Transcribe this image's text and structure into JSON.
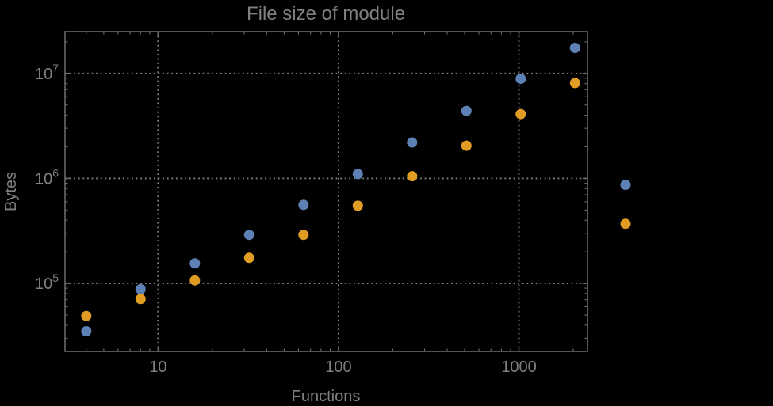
{
  "chart_data": {
    "type": "scatter",
    "title": "File size of module",
    "xlabel": "Functions",
    "ylabel": "Bytes",
    "xscale": "log",
    "yscale": "log",
    "xlim": [
      3.05,
      2400
    ],
    "ylim": [
      22500,
      25000000
    ],
    "grid": true,
    "grid_style": "dotted",
    "legend": "none",
    "background_color": "#000000",
    "frame_color": "#6f6f6f",
    "grid_color": "#828282",
    "text_color": "#808080",
    "x_ticks": {
      "values": [
        10,
        100,
        1000
      ],
      "labels": [
        "10",
        "100",
        "1000"
      ]
    },
    "y_ticks": {
      "values": [
        100000,
        1000000,
        10000000
      ],
      "labels": [
        {
          "base": "10",
          "exp": "5"
        },
        {
          "base": "10",
          "exp": "6"
        },
        {
          "base": "10",
          "exp": "7"
        }
      ]
    },
    "series": [
      {
        "id": "series-1",
        "color": "#5E81B5",
        "marker": "circle",
        "points": [
          [
            4,
            35000
          ],
          [
            8,
            88000
          ],
          [
            16,
            155000
          ],
          [
            32,
            290000
          ],
          [
            64,
            560000
          ],
          [
            128,
            1100000
          ],
          [
            256,
            2200000
          ],
          [
            512,
            4400000
          ],
          [
            1024,
            8900000
          ],
          [
            2048,
            17500000
          ],
          [
            3900,
            870000
          ]
        ]
      },
      {
        "id": "series-2",
        "color": "#E19C24",
        "marker": "circle",
        "points": [
          [
            4,
            49000
          ],
          [
            8,
            71000
          ],
          [
            16,
            107000
          ],
          [
            32,
            175000
          ],
          [
            64,
            290000
          ],
          [
            128,
            550000
          ],
          [
            256,
            1050000
          ],
          [
            512,
            2050000
          ],
          [
            1024,
            4100000
          ],
          [
            2048,
            8100000
          ],
          [
            3900,
            370000
          ]
        ]
      }
    ]
  }
}
